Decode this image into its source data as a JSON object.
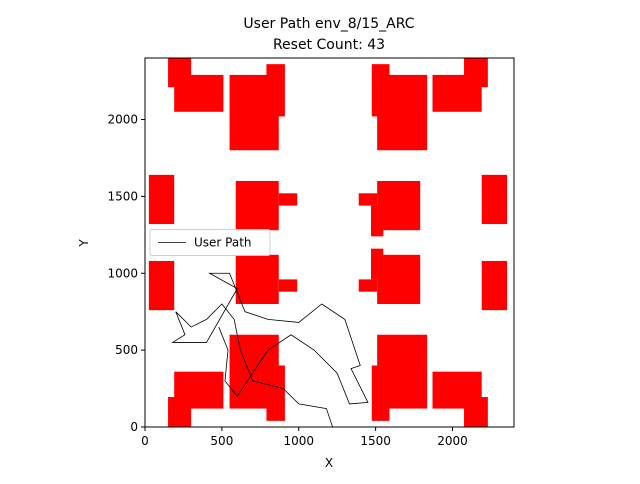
{
  "chart_data": {
    "type": "path",
    "title": "User Path env_8/15_ARC",
    "subtitle": "Reset Count: 43",
    "x_label": "X",
    "y_label": "Y",
    "xlim": [
      0,
      2400
    ],
    "ylim": [
      0,
      2400
    ],
    "xticks": [
      0,
      500,
      1000,
      1500,
      2000
    ],
    "yticks": [
      0,
      500,
      1000,
      1500,
      2000
    ],
    "legend": "center left",
    "obstacle_color": "#ff0000",
    "obstacles": [
      {
        "x": [
          150,
          300
        ],
        "y": [
          2210,
          2400
        ]
      },
      {
        "x": [
          190,
          510
        ],
        "y": [
          2050,
          2290
        ]
      },
      {
        "x": [
          550,
          870
        ],
        "y": [
          1800,
          2290
        ]
      },
      {
        "x": [
          790,
          910
        ],
        "y": [
          2020,
          2360
        ]
      },
      {
        "x": [
          1475,
          1590
        ],
        "y": [
          2020,
          2360
        ]
      },
      {
        "x": [
          1510,
          1835
        ],
        "y": [
          1800,
          2290
        ]
      },
      {
        "x": [
          1870,
          2190
        ],
        "y": [
          2050,
          2290
        ]
      },
      {
        "x": [
          2075,
          2230
        ],
        "y": [
          2210,
          2400
        ]
      },
      {
        "x": [
          25,
          190
        ],
        "y": [
          1320,
          1640
        ]
      },
      {
        "x": [
          590,
          870
        ],
        "y": [
          1280,
          1600
        ]
      },
      {
        "x": [
          870,
          990
        ],
        "y": [
          1440,
          1520
        ]
      },
      {
        "x": [
          1390,
          1510
        ],
        "y": [
          1440,
          1520
        ]
      },
      {
        "x": [
          1510,
          1790
        ],
        "y": [
          1280,
          1600
        ]
      },
      {
        "x": [
          1470,
          1550
        ],
        "y": [
          1240,
          1440
        ]
      },
      {
        "x": [
          2190,
          2355
        ],
        "y": [
          1320,
          1640
        ]
      },
      {
        "x": [
          25,
          190
        ],
        "y": [
          760,
          1080
        ]
      },
      {
        "x": [
          590,
          870
        ],
        "y": [
          800,
          1120
        ]
      },
      {
        "x": [
          870,
          990
        ],
        "y": [
          880,
          960
        ]
      },
      {
        "x": [
          1390,
          1510
        ],
        "y": [
          880,
          960
        ]
      },
      {
        "x": [
          1510,
          1790
        ],
        "y": [
          800,
          1120
        ]
      },
      {
        "x": [
          1470,
          1550
        ],
        "y": [
          960,
          1160
        ]
      },
      {
        "x": [
          2190,
          2355
        ],
        "y": [
          760,
          1080
        ]
      },
      {
        "x": [
          190,
          510
        ],
        "y": [
          120,
          360
        ]
      },
      {
        "x": [
          150,
          300
        ],
        "y": [
          0,
          195
        ]
      },
      {
        "x": [
          550,
          870
        ],
        "y": [
          120,
          600
        ]
      },
      {
        "x": [
          790,
          910
        ],
        "y": [
          40,
          400
        ]
      },
      {
        "x": [
          1510,
          1835
        ],
        "y": [
          120,
          600
        ]
      },
      {
        "x": [
          1475,
          1590
        ],
        "y": [
          40,
          400
        ]
      },
      {
        "x": [
          1870,
          2190
        ],
        "y": [
          120,
          360
        ]
      },
      {
        "x": [
          2075,
          2230
        ],
        "y": [
          0,
          195
        ]
      }
    ],
    "series": [
      {
        "name": "User Path",
        "color": "#000000",
        "x": [
          1220,
          1180,
          1000,
          900,
          700,
          620,
          580,
          500,
          400,
          300,
          200,
          260,
          180,
          400,
          600,
          420,
          550,
          650,
          800,
          1000,
          1150,
          1300,
          1400,
          1340,
          1450,
          1330,
          1250,
          1100,
          950,
          800,
          700,
          600,
          520,
          540,
          480
        ],
        "values": [
          0,
          120,
          150,
          250,
          300,
          500,
          700,
          800,
          700,
          650,
          750,
          600,
          550,
          550,
          900,
          1000,
          1000,
          750,
          700,
          680,
          800,
          700,
          400,
          380,
          160,
          150,
          350,
          500,
          600,
          500,
          350,
          200,
          300,
          500,
          650
        ]
      }
    ]
  }
}
